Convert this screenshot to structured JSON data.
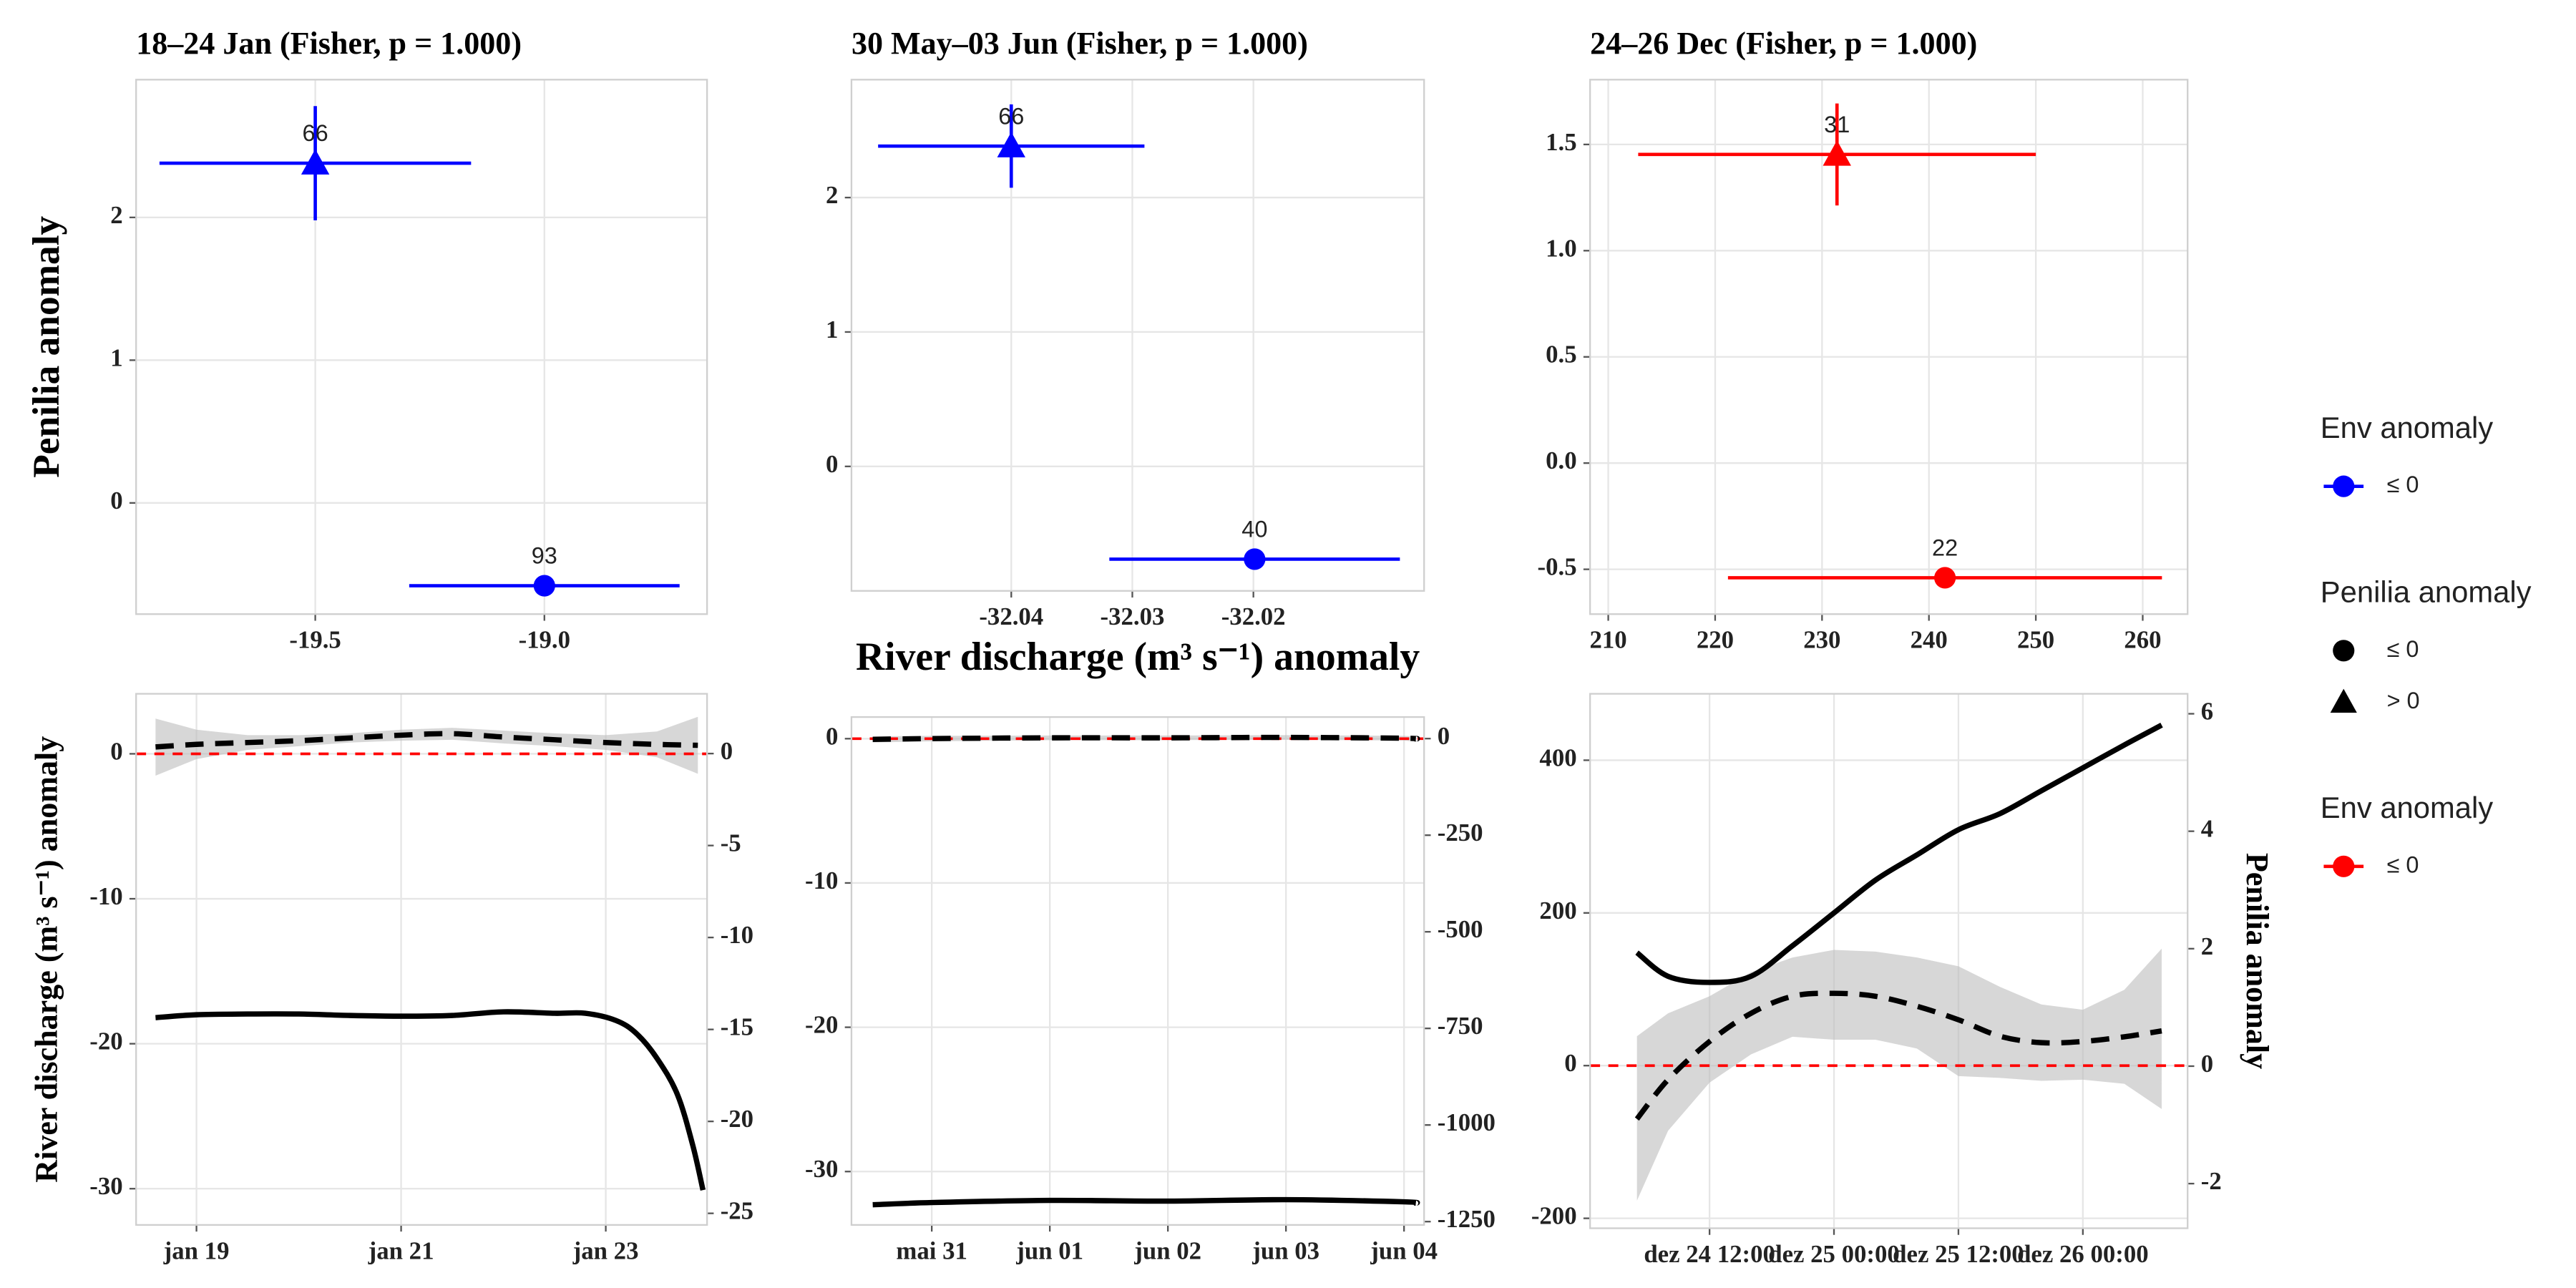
{
  "chart_data": [
    {
      "type": "scatter",
      "title": "18–24 Jan (Fisher, p = 1.000)",
      "ylabel": "Penilia anomaly",
      "color": "#0000ff",
      "x": [
        -19.5,
        -19.0
      ],
      "values": [
        2.38,
        -0.58
      ],
      "xerr": [
        0.34,
        0.295
      ],
      "yerr": [
        0.4,
        0.02
      ],
      "labels": [
        66,
        93
      ],
      "shapes": [
        "triangle",
        "circle"
      ],
      "xlim": [
        -19.891,
        -18.645
      ],
      "ylim": [
        -0.779,
        2.965
      ],
      "xticks": [
        -19.5,
        {
          "value": -19,
          "label": "-19.0"
        }
      ],
      "yticks": [
        0,
        1,
        2
      ],
      "grid": true
    },
    {
      "type": "scatter",
      "title": "30 May–03 Jun (Fisher, p = 1.000)",
      "xlabel": "River discharge (m³ s⁻¹) anomaly",
      "color": "#0000ff",
      "x": [
        -32.04,
        -32.0199
      ],
      "values": [
        2.383,
        -0.69
      ],
      "xerr": [
        0.011,
        0.012
      ],
      "yerr": [
        0.31,
        0.02
      ],
      "labels": [
        66,
        40
      ],
      "shapes": [
        "triangle",
        "circle"
      ],
      "xlim": [
        -32.0532,
        -32.0059
      ],
      "ylim": [
        -0.926,
        2.877
      ],
      "xticks": [
        -32.04,
        -32.03,
        -32.02
      ],
      "yticks": [
        0,
        1,
        2
      ],
      "grid": true
    },
    {
      "type": "scatter",
      "title": "24–26 Dec (Fisher, p = 1.000)",
      "color": "#ff0000",
      "x": [
        231.4,
        241.5
      ],
      "values": [
        1.453,
        -0.54
      ],
      "xerr": [
        18.6,
        20.3
      ],
      "yerr": [
        0.24,
        0.02
      ],
      "labels": [
        31,
        22
      ],
      "shapes": [
        "triangle",
        "circle"
      ],
      "xlim": [
        208.3,
        264.2
      ],
      "ylim": [
        -0.711,
        1.805
      ],
      "xticks": [
        210,
        220,
        230,
        240,
        250,
        260
      ],
      "yticks": [
        -0.5,
        {
          "value": 0,
          "label": "0.0"
        },
        0.5,
        {
          "value": 1,
          "label": "1.0"
        },
        1.5
      ],
      "grid": true
    },
    {
      "type": "line",
      "ylabel": "River discharge (m³ s⁻¹) anomaly",
      "hline": 0,
      "hline_color": "#ff0000",
      "series": [
        {
          "color": "#000000",
          "dash": false,
          "x": [
            18.6,
            19,
            19.5,
            20,
            20.5,
            21,
            21.5,
            22,
            22.5,
            22.8,
            23.1,
            23.3,
            23.5,
            23.7,
            23.85,
            23.95
          ],
          "values": [
            -18.2,
            -18.0,
            -17.95,
            -17.95,
            -18.05,
            -18.1,
            -18.05,
            -17.8,
            -17.9,
            -17.9,
            -18.4,
            -19.3,
            -21,
            -23.5,
            -27,
            -30.1
          ]
        },
        {
          "color": "#000000",
          "dash": true,
          "axis": "y2",
          "x": [
            18.6,
            19,
            19.5,
            20,
            20.5,
            21,
            21.5,
            22,
            22.5,
            23,
            23.5,
            23.9
          ],
          "values": [
            0.36,
            0.5,
            0.6,
            0.7,
            0.85,
            1.0,
            1.08,
            0.9,
            0.75,
            0.6,
            0.5,
            0.45
          ],
          "band_upper": [
            1.9,
            1.3,
            1.0,
            1.0,
            1.1,
            1.3,
            1.4,
            1.25,
            1.1,
            1.0,
            1.2,
            2.0
          ],
          "band_lower": [
            -1.2,
            -0.3,
            0.2,
            0.4,
            0.6,
            0.7,
            0.75,
            0.55,
            0.4,
            0.2,
            -0.2,
            -1.1
          ]
        }
      ],
      "xlim": [
        18.41,
        23.99
      ],
      "ylim": [
        -32.5,
        4.14
      ],
      "y2lim": [
        -25.63,
        3.25
      ],
      "xticks": [
        {
          "value": 19,
          "label": "jan 19"
        },
        {
          "value": 21,
          "label": "jan 21"
        },
        {
          "value": 23,
          "label": "jan 23"
        }
      ],
      "yticks": [
        -30,
        -20,
        -10,
        0
      ],
      "y2ticks": [
        -25,
        -20,
        -15,
        -10,
        -5,
        0
      ],
      "grid": true
    },
    {
      "type": "line",
      "hline": 0,
      "hline_color": "#ff0000",
      "series": [
        {
          "color": "#000000",
          "dash": false,
          "x": [
            -0.5,
            0,
            1,
            2,
            3,
            4,
            4.1
          ],
          "values": [
            -32.3,
            -32.15,
            -32.0,
            -32.05,
            -31.95,
            -32.1,
            -32.2
          ]
        },
        {
          "color": "#000000",
          "dash": true,
          "axis": "y2",
          "x": [
            -0.5,
            0,
            1,
            2,
            3,
            4,
            4.1
          ],
          "values": [
            -2,
            0,
            2,
            2,
            3,
            1,
            -1
          ],
          "band_upper": [
            6,
            7,
            8,
            8,
            9,
            7,
            6
          ],
          "band_lower": [
            -10,
            -7,
            -4,
            -4,
            -3,
            -5,
            -8
          ]
        }
      ],
      "xlim": [
        -0.68,
        4.17
      ],
      "ylim": [
        -33.7,
        1.5
      ],
      "y2lim": [
        -1258.6,
        55.8
      ],
      "xticks": [
        {
          "value": 0,
          "label": "mai 31"
        },
        {
          "value": 1,
          "label": "jun 01"
        },
        {
          "value": 2,
          "label": "jun 02"
        },
        {
          "value": 3,
          "label": "jun 03"
        },
        {
          "value": 4,
          "label": "jun 04"
        }
      ],
      "yticks": [
        -30,
        -20,
        -10,
        0
      ],
      "y2ticks": [
        -1250,
        -1000,
        -750,
        -500,
        -250,
        0
      ],
      "grid": true
    },
    {
      "type": "line",
      "y2label": "Penilia anomaly",
      "hline": 0,
      "hline_color": "#ff0000",
      "series": [
        {
          "color": "#000000",
          "dash": false,
          "x": [
            5,
            8,
            12,
            16,
            20,
            24,
            28,
            32,
            36,
            40,
            44,
            48,
            52,
            55.6
          ],
          "values": [
            148,
            117,
            109,
            117,
            157,
            200,
            243,
            276,
            309,
            330,
            360,
            390,
            420,
            446
          ]
        },
        {
          "color": "#000000",
          "dash": true,
          "axis": "y2",
          "x": [
            5,
            8,
            12,
            16,
            20,
            24,
            28,
            32,
            36,
            40,
            44,
            48,
            52,
            55.6
          ],
          "values": [
            -0.9,
            -0.23,
            0.42,
            0.9,
            1.19,
            1.24,
            1.19,
            1.02,
            0.79,
            0.51,
            0.4,
            0.42,
            0.5,
            0.6
          ],
          "band_upper": [
            0.51,
            0.9,
            1.19,
            1.6,
            1.85,
            1.98,
            1.95,
            1.85,
            1.7,
            1.35,
            1.05,
            0.96,
            1.3,
            2.0
          ],
          "band_lower": [
            -2.29,
            -1.1,
            -0.28,
            0.2,
            0.5,
            0.45,
            0.45,
            0.3,
            -0.17,
            -0.2,
            -0.25,
            -0.23,
            -0.3,
            -0.73
          ]
        }
      ],
      "xlim": [
        0.48,
        58.1
      ],
      "ylim": [
        -213,
        487
      ],
      "y2lim": [
        -2.76,
        6.34
      ],
      "xticks": [
        {
          "value": 12,
          "label": "dez 24 12:00"
        },
        {
          "value": 24,
          "label": "dez 25 00:00"
        },
        {
          "value": 36,
          "label": "dez 25 12:00"
        },
        {
          "value": 48,
          "label": "dez 26 00:00"
        }
      ],
      "yticks": [
        -200,
        0,
        200,
        400
      ],
      "y2ticks": [
        -2,
        0,
        2,
        4,
        6
      ],
      "grid": true
    }
  ],
  "legend": [
    {
      "title": "Env anomaly",
      "entries": [
        {
          "label": "≤ 0",
          "color": "#0000ff",
          "shape": "circle",
          "line": true
        }
      ]
    },
    {
      "title": "Penilia anomaly",
      "entries": [
        {
          "label": "≤ 0",
          "color": "#000000",
          "shape": "circle",
          "line": false
        },
        {
          "label": "> 0",
          "color": "#000000",
          "shape": "triangle",
          "line": false
        }
      ]
    },
    {
      "title": "Env anomaly",
      "entries": [
        {
          "label": "≤ 0",
          "color": "#ff0000",
          "shape": "circle",
          "line": true
        }
      ]
    }
  ]
}
